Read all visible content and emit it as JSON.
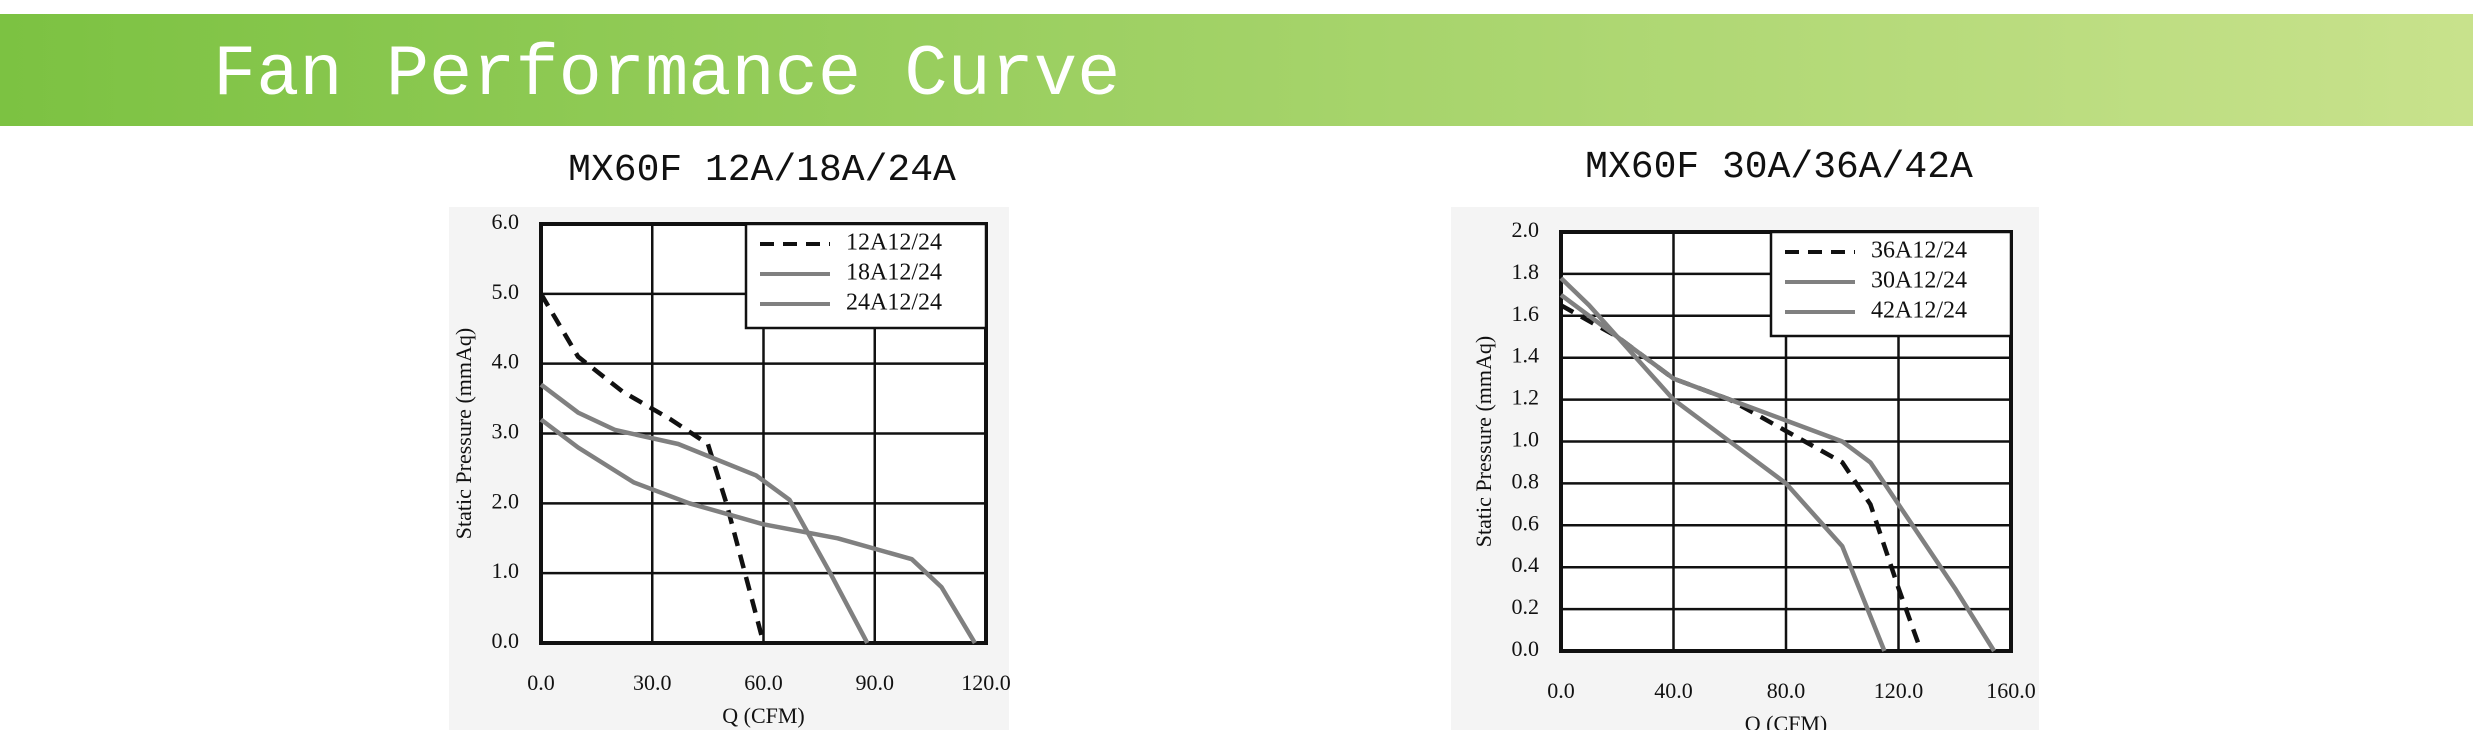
{
  "header": {
    "title": "Fan Performance Curve"
  },
  "chart_data": [
    {
      "type": "line",
      "title": "MX60F 12A/18A/24A",
      "x_label": "Q (CFM)",
      "y_label": "Static Pressure (mmAq)",
      "xlim": [
        0,
        120
      ],
      "xticks": [
        {
          "value": 0,
          "label": "0.0"
        },
        {
          "value": 30,
          "label": "30.0"
        },
        {
          "value": 60,
          "label": "60.0"
        },
        {
          "value": 90,
          "label": "90.0"
        },
        {
          "value": 120,
          "label": "120.0"
        }
      ],
      "ylim": [
        0,
        6
      ],
      "yticks": [
        {
          "value": 0,
          "label": "0.0"
        },
        {
          "value": 1,
          "label": "1.0"
        },
        {
          "value": 2,
          "label": "2.0"
        },
        {
          "value": 3,
          "label": "3.0"
        },
        {
          "value": 4,
          "label": "4.0"
        },
        {
          "value": 5,
          "label": "5.0"
        },
        {
          "value": 6,
          "label": "6.0"
        }
      ],
      "grid": true,
      "legend": "upper right",
      "series": [
        {
          "name": "12A12/24",
          "color": "#111111",
          "style": "dashed",
          "x": [
            0,
            10,
            22,
            35,
            45,
            50,
            55,
            60
          ],
          "values": [
            5.0,
            4.1,
            3.6,
            3.2,
            2.85,
            2.0,
            1.0,
            0
          ]
        },
        {
          "name": "18A12/24",
          "color": "#808080",
          "style": "solid",
          "x": [
            0,
            10,
            20,
            37,
            58,
            67,
            78,
            88
          ],
          "values": [
            3.7,
            3.3,
            3.05,
            2.85,
            2.4,
            2.05,
            1.0,
            0
          ]
        },
        {
          "name": "24A12/24",
          "color": "#808080",
          "style": "solid",
          "x": [
            0,
            10,
            25,
            40,
            60,
            80,
            100,
            108,
            117
          ],
          "values": [
            3.2,
            2.8,
            2.3,
            2.0,
            1.7,
            1.5,
            1.2,
            0.8,
            0
          ]
        }
      ]
    },
    {
      "type": "line",
      "title": "MX60F  30A/36A/42A",
      "x_label": "Q (CFM)",
      "y_label": "Static Pressure (mmAq)",
      "xlim": [
        0,
        160
      ],
      "xticks": [
        {
          "value": 0,
          "label": "0.0"
        },
        {
          "value": 40,
          "label": "40.0"
        },
        {
          "value": 80,
          "label": "80.0"
        },
        {
          "value": 120,
          "label": "120.0"
        },
        {
          "value": 160,
          "label": "160.0"
        }
      ],
      "ylim": [
        0,
        2
      ],
      "yticks": [
        {
          "value": 0,
          "label": "0.0"
        },
        {
          "value": 0.2,
          "label": "0.2"
        },
        {
          "value": 0.4,
          "label": "0.4"
        },
        {
          "value": 0.6,
          "label": "0.6"
        },
        {
          "value": 0.8,
          "label": "0.8"
        },
        {
          "value": 1,
          "label": "1.0"
        },
        {
          "value": 1.2,
          "label": "1.2"
        },
        {
          "value": 1.4,
          "label": "1.4"
        },
        {
          "value": 1.6,
          "label": "1.6"
        },
        {
          "value": 1.8,
          "label": "1.8"
        },
        {
          "value": 2,
          "label": "2.0"
        }
      ],
      "grid": true,
      "legend": "upper right",
      "series": [
        {
          "name": "36A12/24",
          "color": "#111111",
          "style": "dashed",
          "x": [
            0,
            20,
            40,
            60,
            80,
            100,
            110,
            120,
            128
          ],
          "values": [
            1.65,
            1.5,
            1.3,
            1.2,
            1.05,
            0.9,
            0.7,
            0.3,
            0
          ]
        },
        {
          "name": "30A12/24",
          "color": "#808080",
          "style": "solid",
          "x": [
            0,
            10,
            20,
            40,
            60,
            80,
            100,
            115
          ],
          "values": [
            1.78,
            1.65,
            1.5,
            1.2,
            1.0,
            0.8,
            0.5,
            0
          ]
        },
        {
          "name": "42A12/24",
          "color": "#808080",
          "style": "solid",
          "x": [
            0,
            20,
            40,
            60,
            80,
            100,
            110,
            120,
            140,
            154
          ],
          "values": [
            1.7,
            1.5,
            1.3,
            1.2,
            1.1,
            1.0,
            0.9,
            0.7,
            0.3,
            0
          ]
        }
      ]
    }
  ]
}
